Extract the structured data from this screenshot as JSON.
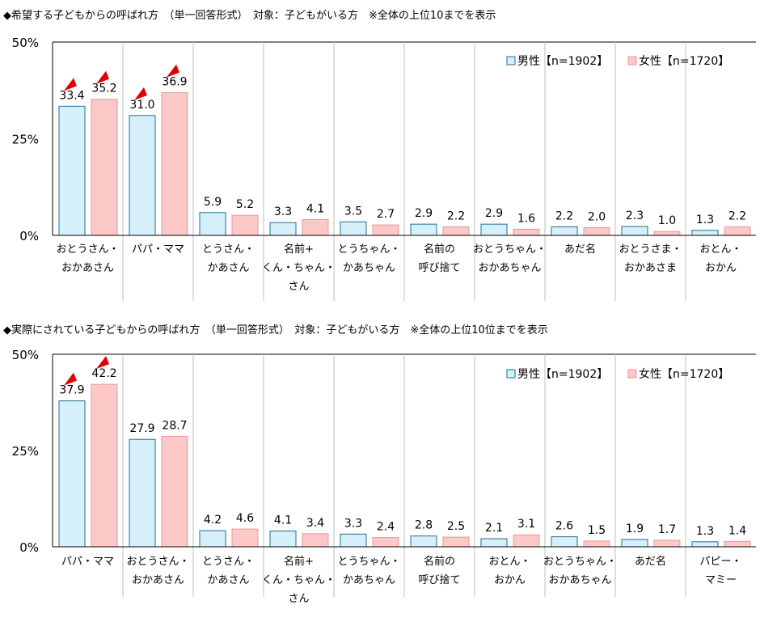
{
  "colors": {
    "male_fill": "#d6f0fb",
    "male_stroke": "#1f6f8f",
    "female_fill": "#fcc8c8",
    "female_stroke": "#e39a9a",
    "marker": "#e00000",
    "grid": "#bfbfbf",
    "axis": "#000000"
  },
  "chart_data": [
    {
      "type": "bar",
      "title": "◆希望する子どもからの呼ばれ方　（単一回答形式）　対象：子どもがいる方　※全体の上位10までを表示",
      "ylim": [
        0,
        50
      ],
      "yticks": [
        "0%",
        "25%",
        "50%"
      ],
      "ytick_values": [
        0,
        25,
        50
      ],
      "grid": true,
      "legend": "top-right",
      "categories": [
        [
          "おとうさん・",
          "おかあさん"
        ],
        [
          "パパ・ママ"
        ],
        [
          "とうさん・",
          "かあさん"
        ],
        [
          "名前+",
          "くん・ちゃん・",
          "さん"
        ],
        [
          "とうちゃん・",
          "かあちゃん"
        ],
        [
          "名前の",
          "呼び捨て"
        ],
        [
          "おとうちゃん・",
          "おかあちゃん"
        ],
        [
          "あだ名"
        ],
        [
          "おとうさま・",
          "おかあさま"
        ],
        [
          "おとん・",
          "おかん"
        ]
      ],
      "series": [
        {
          "name": "男性【n=1902】",
          "values": [
            33.4,
            31.0,
            5.9,
            3.3,
            3.5,
            2.9,
            2.9,
            2.2,
            2.3,
            1.3
          ],
          "highlight": [
            0,
            1
          ]
        },
        {
          "name": "女性【n=1720】",
          "values": [
            35.2,
            36.9,
            5.2,
            4.1,
            2.7,
            2.2,
            1.6,
            2.0,
            1.0,
            2.2
          ],
          "highlight": [
            0,
            1
          ]
        }
      ]
    },
    {
      "type": "bar",
      "title": "◆実際にされている子どもからの呼ばれ方　（単一回答形式）　対象：子どもがいる方　※全体の上位10位までを表示",
      "ylim": [
        0,
        50
      ],
      "yticks": [
        "0%",
        "25%",
        "50%"
      ],
      "ytick_values": [
        0,
        25,
        50
      ],
      "grid": true,
      "legend": "top-right",
      "categories": [
        [
          "パパ・ママ"
        ],
        [
          "おとうさん・",
          "おかあさん"
        ],
        [
          "とうさん・",
          "かあさん"
        ],
        [
          "名前+",
          "くん・ちゃん・",
          "さん"
        ],
        [
          "とうちゃん・",
          "かあちゃん"
        ],
        [
          "名前の",
          "呼び捨て"
        ],
        [
          "おとん・",
          "おかん"
        ],
        [
          "おとうちゃん・",
          "おかあちゃん"
        ],
        [
          "あだ名"
        ],
        [
          "パピー・",
          "マミー"
        ]
      ],
      "series": [
        {
          "name": "男性【n=1902】",
          "values": [
            37.9,
            27.9,
            4.2,
            4.1,
            3.3,
            2.8,
            2.1,
            2.6,
            1.9,
            1.3
          ],
          "highlight": [
            0
          ]
        },
        {
          "name": "女性【n=1720】",
          "values": [
            42.2,
            28.7,
            4.6,
            3.4,
            2.4,
            2.5,
            3.1,
            1.5,
            1.7,
            1.4
          ],
          "highlight": [
            0
          ]
        }
      ]
    }
  ]
}
